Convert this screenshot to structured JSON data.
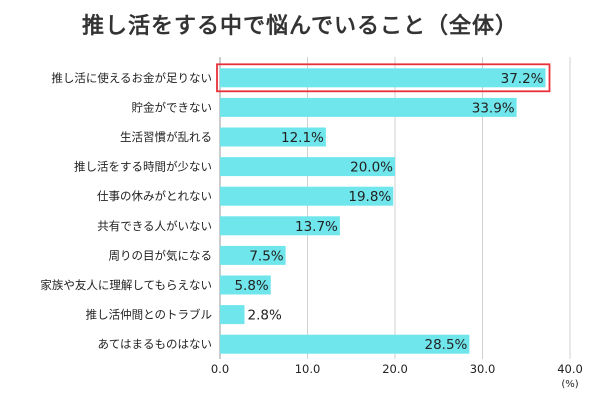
{
  "chart_data": {
    "type": "bar",
    "orientation": "horizontal",
    "title": "推し活をする中で悩んでいること（全体）",
    "categories": [
      "推し活に使えるお金が足りない",
      "貯金ができない",
      "生活習慣が乱れる",
      "推し活をする時間が少ない",
      "仕事の休みがとれない",
      "共有できる人がいない",
      "周りの目が気になる",
      "家族や友人に理解してもらえない",
      "推し活仲間とのトラブル",
      "あてはまるものはない"
    ],
    "values": [
      37.2,
      33.9,
      12.1,
      20.0,
      19.8,
      13.7,
      7.5,
      5.8,
      2.8,
      28.5
    ],
    "value_labels": [
      "37.2%",
      "33.9%",
      "12.1%",
      "20.0%",
      "19.8%",
      "13.7%",
      "7.5%",
      "5.8%",
      "2.8%",
      "28.5%"
    ],
    "xlim": [
      0,
      40
    ],
    "xticks": [
      0,
      10,
      20,
      30,
      40
    ],
    "xtick_labels": [
      "0.0",
      "10.0",
      "20.0",
      "30.0",
      "40.0"
    ],
    "unit": "(%)",
    "grid": true,
    "highlighted_index": 0
  },
  "colors": {
    "bar": "#6fe6ec",
    "highlight_border": "#e8303a",
    "grid": "#d0d0d0",
    "axis": "#999999"
  }
}
